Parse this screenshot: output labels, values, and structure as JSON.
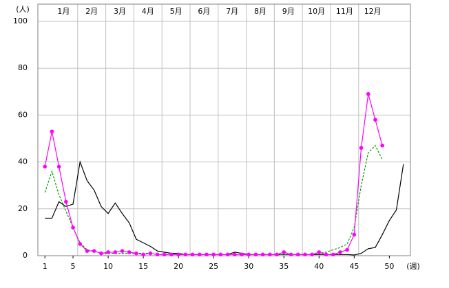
{
  "chart_data": {
    "type": "line",
    "y_label": "(人)",
    "x_label": "(週)",
    "months": [
      "1月",
      "2月",
      "3月",
      "4月",
      "5月",
      "6月",
      "7月",
      "8月",
      "9月",
      "10月",
      "11月",
      "12月"
    ],
    "x": [
      1,
      2,
      3,
      4,
      5,
      6,
      7,
      8,
      9,
      10,
      11,
      12,
      13,
      14,
      15,
      16,
      17,
      18,
      19,
      20,
      21,
      22,
      23,
      24,
      25,
      26,
      27,
      28,
      29,
      30,
      31,
      32,
      33,
      34,
      35,
      36,
      37,
      38,
      39,
      40,
      41,
      42,
      43,
      44,
      45,
      46,
      47,
      48,
      49,
      50,
      51,
      52
    ],
    "xlim": [
      0,
      53
    ],
    "xticks": [
      1,
      5,
      10,
      15,
      20,
      25,
      30,
      35,
      40,
      45,
      50
    ],
    "ylim": [
      0,
      100
    ],
    "yticks": [
      0,
      20,
      40,
      60,
      80,
      100
    ],
    "grid": true,
    "series": [
      {
        "color": "#000000",
        "style": "solid",
        "markers": false,
        "values": [
          16,
          16,
          23,
          21,
          22,
          40,
          32,
          28,
          21,
          18,
          22.5,
          18,
          14,
          7,
          5.5,
          4,
          2,
          1.5,
          1,
          1,
          0.5,
          0.5,
          0.5,
          0.5,
          0.5,
          0.5,
          0.5,
          1.5,
          1,
          0.5,
          0.5,
          0.5,
          0.5,
          0.5,
          0.5,
          0.5,
          0.5,
          0.5,
          0.5,
          0.5,
          0.5,
          0.5,
          0.5,
          0.5,
          0.3,
          1,
          3,
          3.5,
          9,
          15,
          19.5,
          39
        ]
      },
      {
        "color": "#009900",
        "style": "dashed",
        "markers": false,
        "values": [
          27,
          36,
          26,
          19,
          12,
          5.5,
          2.5,
          2,
          1,
          1,
          1,
          1,
          1,
          1,
          1,
          1,
          0.5,
          0.5,
          0.5,
          0.5,
          0.5,
          0.5,
          0.5,
          0.5,
          0.5,
          0.5,
          0.5,
          0.5,
          0.5,
          0.5,
          0.5,
          0.5,
          0.5,
          0.5,
          0.5,
          0.5,
          0.5,
          0.5,
          0.5,
          1,
          1.5,
          2.5,
          3.5,
          5,
          12,
          30,
          44,
          47,
          41,
          null,
          null,
          null
        ]
      },
      {
        "color": "#ff00ff",
        "style": "solid",
        "markers": true,
        "values": [
          38,
          53,
          38,
          23,
          12,
          5,
          2,
          2,
          1,
          1.5,
          1.5,
          2,
          1.5,
          1,
          0.5,
          1,
          0.5,
          0.5,
          0.5,
          0.5,
          0.5,
          0.5,
          0.5,
          0.5,
          0.5,
          0.5,
          0.5,
          0.5,
          0.5,
          0.5,
          0.5,
          0.5,
          0.5,
          0.5,
          1.5,
          0.5,
          0.5,
          0.5,
          0.5,
          1.5,
          0.5,
          0.5,
          1.5,
          2.5,
          9,
          46,
          69,
          58,
          47,
          null,
          null,
          null
        ]
      }
    ]
  }
}
